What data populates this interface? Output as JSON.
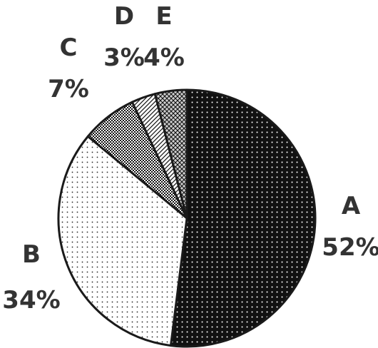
{
  "chart_data": {
    "type": "pie",
    "title": "",
    "start_angle_deg": 0,
    "direction": "clockwise",
    "slices": [
      {
        "label": "A",
        "value": 52,
        "display": "52%",
        "pattern": "dots-dark"
      },
      {
        "label": "B",
        "value": 34,
        "display": "34%",
        "pattern": "dots-light"
      },
      {
        "label": "C",
        "value": 7,
        "display": "7%",
        "pattern": "checker"
      },
      {
        "label": "D",
        "value": 3,
        "display": "3%",
        "pattern": "diagonal-hatch"
      },
      {
        "label": "E",
        "value": 4,
        "display": "4%",
        "pattern": "cross-hatch"
      }
    ],
    "colors": {
      "outline": "#1a1a1a",
      "dark_fill": "#111111",
      "light_fill": "#ffffff",
      "text": "#333333"
    }
  }
}
